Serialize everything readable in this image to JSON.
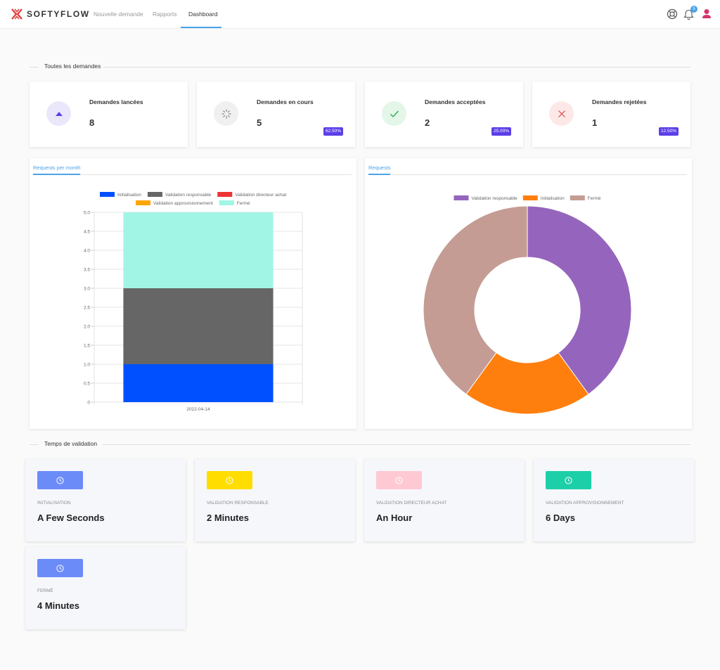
{
  "app": {
    "brand": "SOFTYFLOW",
    "notification_count": "5"
  },
  "nav": [
    {
      "label": "Nouvelle demande",
      "active": false
    },
    {
      "label": "Rapports",
      "active": false
    },
    {
      "label": "Dashboard",
      "active": true
    }
  ],
  "sections": {
    "all_requests": "Toutes les demandes",
    "validation_time": "Temps de validation"
  },
  "stats": [
    {
      "label": "Demandes lancées",
      "value": "8",
      "percent": "",
      "icon": "triangle-up-icon",
      "color": "#5c3fe8",
      "bg": "#ebe7fb"
    },
    {
      "label": "Demandes en cours",
      "value": "5",
      "percent": "62.50%",
      "icon": "spinner-icon",
      "color": "#8a8a8a",
      "bg": "#f0f0f0"
    },
    {
      "label": "Demandes acceptées",
      "value": "2",
      "percent": "25.00%",
      "icon": "check-icon",
      "color": "#27a84f",
      "bg": "#e3f6e8"
    },
    {
      "label": "Demandes rejetées",
      "value": "1",
      "percent": "12.50%",
      "icon": "close-icon",
      "color": "#e04848",
      "bg": "#fde8e8"
    }
  ],
  "chart_data": [
    {
      "type": "bar",
      "tab": "Requests per month",
      "stacked": true,
      "categories": [
        "2022-04-14"
      ],
      "series": [
        {
          "name": "Initialisation",
          "values": [
            1
          ],
          "color": "#0050ff"
        },
        {
          "name": "Validation responsable",
          "values": [
            2
          ],
          "color": "#666666"
        },
        {
          "name": "Validation directeur achat",
          "values": [
            0
          ],
          "color": "#ee3333"
        },
        {
          "name": "Validation approvisionnement",
          "values": [
            0
          ],
          "color": "#ffa500"
        },
        {
          "name": "Fermé",
          "values": [
            2
          ],
          "color": "#a0f5e4"
        }
      ],
      "ylim": [
        0,
        5
      ],
      "yticks": [
        "0",
        "0.5",
        "1.0",
        "1.5",
        "2.0",
        "2.5",
        "3.0",
        "3.5",
        "4.0",
        "4.5",
        "5.0"
      ],
      "grid": true,
      "legend": "top"
    },
    {
      "type": "pie",
      "tab": "Requests",
      "donut": true,
      "slices": [
        {
          "name": "Validation responsable",
          "value": 2,
          "color": "#9565bd"
        },
        {
          "name": "Initialisation",
          "value": 1,
          "color": "#ff7f0e"
        },
        {
          "name": "Fermé",
          "value": 2,
          "color": "#c49c94"
        }
      ],
      "legend": "top"
    }
  ],
  "validation_times": [
    {
      "label": "Initialisation",
      "value": "A Few Seconds",
      "color": "#6b8cf8"
    },
    {
      "label": "Validation responsable",
      "value": "2 Minutes",
      "color": "#ffdd00"
    },
    {
      "label": "Validation directeur achat",
      "value": "An Hour",
      "color": "#ffc9d4"
    },
    {
      "label": "Validation approvisionnement",
      "value": "6 Days",
      "color": "#1ccfa9"
    },
    {
      "label": "Fermé",
      "value": "4 Minutes",
      "color": "#6b8cf8"
    }
  ]
}
